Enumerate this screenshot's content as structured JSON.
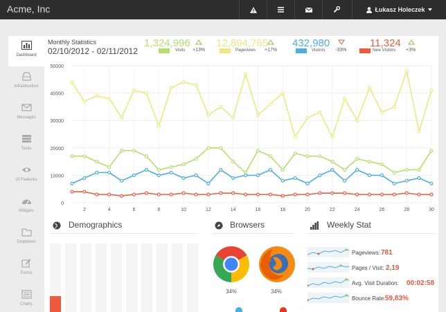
{
  "app": {
    "brand": "Acme, Inc"
  },
  "topbar": {
    "icons": [
      "warning-icon",
      "list-icon",
      "envelope-icon",
      "wrench-icon"
    ],
    "user": {
      "name": "Łukasz Holeczek",
      "icon": "user-icon",
      "caret": "caret-down-icon"
    }
  },
  "sidebar": {
    "items": [
      {
        "label": "Dashboard",
        "icon": "bar-chart-icon",
        "active": true
      },
      {
        "label": "Infrastructure",
        "icon": "hdd-icon"
      },
      {
        "label": "Messages",
        "icon": "envelope-icon"
      },
      {
        "label": "Tasks",
        "icon": "tasks-icon"
      },
      {
        "label": "UI Features",
        "icon": "eye-icon"
      },
      {
        "label": "Widgets",
        "icon": "dashboard-icon"
      },
      {
        "label": "Dropdown",
        "icon": "folder-icon"
      },
      {
        "label": "Forms",
        "icon": "edit-icon"
      },
      {
        "label": "Charts",
        "icon": "list-alt-icon"
      }
    ]
  },
  "monthly": {
    "title": "Monthly Statistics",
    "date_range": "02/10/2012 - 02/11/2012",
    "stats": [
      {
        "value": "1,324,996",
        "label": "Visits",
        "change": "+13%",
        "trend": "up",
        "color": "#b4e06a"
      },
      {
        "value": "12,894,765",
        "label": "Pageviews",
        "change": "+17%",
        "trend": "up",
        "color": "#ede97e"
      },
      {
        "value": "432,980",
        "label": "Visitors",
        "change": "-33%",
        "trend": "down",
        "color": "#4aaee5"
      },
      {
        "value": "11,324",
        "label": "New Visitors",
        "change": "+3%",
        "trend": "up",
        "color": "#ef5a3c"
      }
    ]
  },
  "chart_data": {
    "type": "line",
    "x": [
      1,
      2,
      3,
      4,
      5,
      6,
      7,
      8,
      9,
      10,
      11,
      12,
      13,
      14,
      15,
      16,
      17,
      18,
      19,
      20,
      21,
      22,
      23,
      24,
      25,
      26,
      27,
      28,
      29,
      30
    ],
    "x_ticks": [
      2,
      4,
      6,
      8,
      10,
      12,
      14,
      16,
      18,
      20,
      22,
      24,
      26,
      28,
      30
    ],
    "y_ticks": [
      0,
      10000,
      20000,
      30000,
      40000,
      50000
    ],
    "ylim": [
      0,
      50000
    ],
    "xlim": [
      1,
      30
    ],
    "grid": true,
    "series": [
      {
        "name": "Pageviews",
        "color": "#ede97e",
        "values": [
          44000,
          37000,
          39000,
          38000,
          31000,
          41000,
          40000,
          28000,
          42000,
          44000,
          43000,
          32000,
          35000,
          31000,
          47000,
          32000,
          36000,
          40000,
          24000,
          31000,
          33000,
          24000,
          38000,
          30000,
          42000,
          33000,
          35000,
          48000,
          26000,
          41000
        ]
      },
      {
        "name": "Visits",
        "color": "#b4e06a",
        "values": [
          17000,
          17000,
          15000,
          13000,
          19000,
          19000,
          17000,
          12000,
          13000,
          14000,
          16000,
          20000,
          20000,
          15000,
          11000,
          19000,
          17000,
          12000,
          18000,
          17000,
          17000,
          15000,
          12000,
          16000,
          15000,
          14000,
          11000,
          12000,
          12000,
          19000
        ]
      },
      {
        "name": "Visitors",
        "color": "#4aaee5",
        "values": [
          7000,
          9000,
          11000,
          11000,
          8000,
          10000,
          12000,
          10000,
          11000,
          9000,
          10000,
          7000,
          12000,
          9000,
          10000,
          10000,
          12000,
          8000,
          9000,
          7000,
          10000,
          12000,
          8000,
          12000,
          10000,
          10000,
          7000,
          8000,
          9000,
          7000
        ]
      },
      {
        "name": "New Visitors",
        "color": "#ef5a3c",
        "values": [
          4000,
          4000,
          3000,
          3000,
          2500,
          3000,
          3500,
          3000,
          3000,
          3500,
          3000,
          3000,
          3500,
          3500,
          3000,
          3000,
          3000,
          2500,
          3000,
          3000,
          3500,
          3500,
          3500,
          3000,
          3000,
          3000,
          3000,
          3500,
          3000,
          3000
        ]
      }
    ]
  },
  "demographics": {
    "title": "Demographics",
    "icon": "globe-icon",
    "fill_fraction": 0.23
  },
  "browsers": {
    "title": "Browsers",
    "icon": "compass-icon",
    "items": [
      {
        "name": "chrome-logo",
        "pct": "34%"
      },
      {
        "name": "firefox-logo",
        "pct": "34%"
      }
    ]
  },
  "weekly": {
    "title": "Weekly Stat",
    "icon": "signal-icon",
    "rows": [
      {
        "label": "Pageviews:",
        "value": "781"
      },
      {
        "label": "Pages / Visit:",
        "value": "2,19"
      },
      {
        "label": "Avg. Visit Duration:",
        "value": "00:02:58"
      },
      {
        "label": "Bounce Rate:",
        "value": "59,83%"
      }
    ]
  }
}
